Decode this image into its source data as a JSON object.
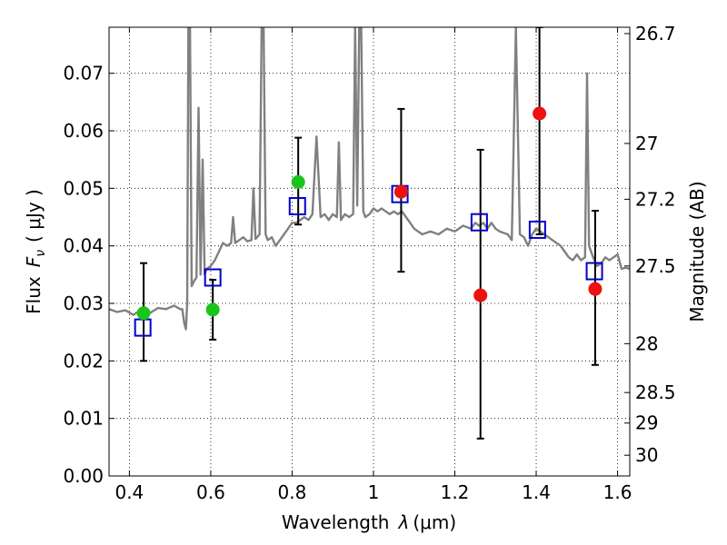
{
  "chart_data": {
    "type": "scatter",
    "xlabel_prefix": "Wavelength",
    "xlabel_symbol": "λ",
    "xlabel_unit": "(μm)",
    "ylabel_prefix": "Flux",
    "ylabel_symbol": "F",
    "ylabel_subscript": "ν",
    "ylabel_unit": "( μJy )",
    "y2label": "Magnitude (AB)",
    "xlim": [
      0.35,
      1.63
    ],
    "ylim": [
      0.0,
      0.078
    ],
    "grid": true,
    "x_ticks": [
      0.4,
      0.6,
      0.8,
      1.0,
      1.2,
      1.4,
      1.6
    ],
    "x_tick_labels": [
      "0.4",
      "0.6",
      "0.8",
      "1",
      "1.2",
      "1.4",
      "1.6"
    ],
    "y_ticks": [
      0.0,
      0.01,
      0.02,
      0.03,
      0.04,
      0.05,
      0.06,
      0.07
    ],
    "y_tick_labels": [
      "0.00",
      "0.01",
      "0.02",
      "0.03",
      "0.04",
      "0.05",
      "0.06",
      "0.07"
    ],
    "y2_ticks": [
      {
        "label": "26.7",
        "flux": 0.0769
      },
      {
        "label": "27",
        "flux": 0.0578
      },
      {
        "label": "27.2",
        "flux": 0.0481
      },
      {
        "label": "27.5",
        "flux": 0.0365
      },
      {
        "label": "28",
        "flux": 0.023
      },
      {
        "label": "28.5",
        "flux": 0.0145
      },
      {
        "label": "29",
        "flux": 0.0092
      },
      {
        "label": "30",
        "flux": 0.0036
      }
    ],
    "colors": {
      "spectrum": "#808080",
      "green_points": "#1ac41a",
      "red_points": "#ee1111",
      "model_squares": "#0000cc",
      "errorbars": "#000000",
      "grid": "#000000"
    },
    "spectrum": [
      [
        0.35,
        0.029
      ],
      [
        0.37,
        0.0285
      ],
      [
        0.39,
        0.0288
      ],
      [
        0.41,
        0.028
      ],
      [
        0.43,
        0.029
      ],
      [
        0.45,
        0.0283
      ],
      [
        0.47,
        0.0292
      ],
      [
        0.49,
        0.029
      ],
      [
        0.51,
        0.0296
      ],
      [
        0.525,
        0.029
      ],
      [
        0.53,
        0.029
      ],
      [
        0.535,
        0.0265
      ],
      [
        0.539,
        0.0255
      ],
      [
        0.542,
        0.03
      ],
      [
        0.545,
        0.078
      ],
      [
        0.549,
        0.078
      ],
      [
        0.553,
        0.033
      ],
      [
        0.56,
        0.034
      ],
      [
        0.565,
        0.0345
      ],
      [
        0.57,
        0.064
      ],
      [
        0.575,
        0.035
      ],
      [
        0.58,
        0.055
      ],
      [
        0.585,
        0.035
      ],
      [
        0.59,
        0.036
      ],
      [
        0.6,
        0.0365
      ],
      [
        0.61,
        0.0375
      ],
      [
        0.62,
        0.039
      ],
      [
        0.63,
        0.0405
      ],
      [
        0.64,
        0.04
      ],
      [
        0.65,
        0.0405
      ],
      [
        0.655,
        0.045
      ],
      [
        0.66,
        0.0405
      ],
      [
        0.67,
        0.041
      ],
      [
        0.68,
        0.0415
      ],
      [
        0.69,
        0.0408
      ],
      [
        0.7,
        0.041
      ],
      [
        0.705,
        0.05
      ],
      [
        0.71,
        0.0412
      ],
      [
        0.72,
        0.042
      ],
      [
        0.725,
        0.078
      ],
      [
        0.73,
        0.078
      ],
      [
        0.735,
        0.042
      ],
      [
        0.74,
        0.041
      ],
      [
        0.75,
        0.0415
      ],
      [
        0.76,
        0.04
      ],
      [
        0.77,
        0.041
      ],
      [
        0.78,
        0.042
      ],
      [
        0.79,
        0.043
      ],
      [
        0.8,
        0.044
      ],
      [
        0.81,
        0.044
      ],
      [
        0.82,
        0.0445
      ],
      [
        0.83,
        0.045
      ],
      [
        0.84,
        0.0445
      ],
      [
        0.85,
        0.0455
      ],
      [
        0.86,
        0.059
      ],
      [
        0.87,
        0.045
      ],
      [
        0.88,
        0.0455
      ],
      [
        0.89,
        0.0445
      ],
      [
        0.9,
        0.0455
      ],
      [
        0.91,
        0.045
      ],
      [
        0.915,
        0.058
      ],
      [
        0.92,
        0.0445
      ],
      [
        0.93,
        0.0455
      ],
      [
        0.94,
        0.045
      ],
      [
        0.95,
        0.0455
      ],
      [
        0.955,
        0.078
      ],
      [
        0.96,
        0.047
      ],
      [
        0.965,
        0.078
      ],
      [
        0.97,
        0.078
      ],
      [
        0.975,
        0.046
      ],
      [
        0.98,
        0.045
      ],
      [
        0.99,
        0.0455
      ],
      [
        1.0,
        0.0465
      ],
      [
        1.01,
        0.046
      ],
      [
        1.02,
        0.0465
      ],
      [
        1.03,
        0.046
      ],
      [
        1.04,
        0.0455
      ],
      [
        1.05,
        0.046
      ],
      [
        1.06,
        0.0455
      ],
      [
        1.07,
        0.046
      ],
      [
        1.08,
        0.045
      ],
      [
        1.09,
        0.044
      ],
      [
        1.1,
        0.043
      ],
      [
        1.12,
        0.042
      ],
      [
        1.14,
        0.0425
      ],
      [
        1.16,
        0.042
      ],
      [
        1.18,
        0.043
      ],
      [
        1.2,
        0.0425
      ],
      [
        1.22,
        0.0435
      ],
      [
        1.24,
        0.043
      ],
      [
        1.25,
        0.044
      ],
      [
        1.26,
        0.0435
      ],
      [
        1.27,
        0.044
      ],
      [
        1.28,
        0.043
      ],
      [
        1.29,
        0.044
      ],
      [
        1.3,
        0.043
      ],
      [
        1.31,
        0.0425
      ],
      [
        1.33,
        0.042
      ],
      [
        1.34,
        0.041
      ],
      [
        1.35,
        0.078
      ],
      [
        1.36,
        0.042
      ],
      [
        1.37,
        0.0415
      ],
      [
        1.38,
        0.04
      ],
      [
        1.39,
        0.042
      ],
      [
        1.4,
        0.043
      ],
      [
        1.41,
        0.0425
      ],
      [
        1.42,
        0.042
      ],
      [
        1.43,
        0.0415
      ],
      [
        1.44,
        0.041
      ],
      [
        1.45,
        0.0405
      ],
      [
        1.46,
        0.04
      ],
      [
        1.47,
        0.039
      ],
      [
        1.48,
        0.038
      ],
      [
        1.49,
        0.0375
      ],
      [
        1.5,
        0.0385
      ],
      [
        1.51,
        0.0375
      ],
      [
        1.52,
        0.038
      ],
      [
        1.525,
        0.07
      ],
      [
        1.53,
        0.04
      ],
      [
        1.54,
        0.038
      ],
      [
        1.55,
        0.0365
      ],
      [
        1.56,
        0.037
      ],
      [
        1.57,
        0.038
      ],
      [
        1.58,
        0.0375
      ],
      [
        1.59,
        0.038
      ],
      [
        1.6,
        0.0385
      ],
      [
        1.61,
        0.036
      ],
      [
        1.62,
        0.0362
      ],
      [
        1.63,
        0.036
      ]
    ],
    "green_points": [
      {
        "x": 0.435,
        "y": 0.0283
      },
      {
        "x": 0.605,
        "y": 0.0289
      },
      {
        "x": 0.815,
        "y": 0.0511
      }
    ],
    "red_points": [
      {
        "x": 1.068,
        "y": 0.0494
      },
      {
        "x": 1.263,
        "y": 0.0314
      },
      {
        "x": 1.408,
        "y": 0.063
      },
      {
        "x": 1.545,
        "y": 0.0325
      }
    ],
    "model_squares": [
      {
        "x": 0.433,
        "y": 0.0258
      },
      {
        "x": 0.605,
        "y": 0.0345
      },
      {
        "x": 0.813,
        "y": 0.0469
      },
      {
        "x": 1.065,
        "y": 0.049
      },
      {
        "x": 1.26,
        "y": 0.0441
      },
      {
        "x": 1.403,
        "y": 0.0428
      },
      {
        "x": 1.543,
        "y": 0.0356
      }
    ],
    "errorbars": [
      {
        "x": 0.435,
        "low": 0.02,
        "high": 0.037
      },
      {
        "x": 0.605,
        "low": 0.0237,
        "high": 0.0341
      },
      {
        "x": 0.815,
        "low": 0.0437,
        "high": 0.0588
      },
      {
        "x": 1.068,
        "low": 0.0355,
        "high": 0.0638
      },
      {
        "x": 1.263,
        "low": 0.0065,
        "high": 0.0567
      },
      {
        "x": 1.408,
        "low": 0.042,
        "high": 0.078
      },
      {
        "x": 1.545,
        "low": 0.0193,
        "high": 0.0461
      }
    ]
  }
}
